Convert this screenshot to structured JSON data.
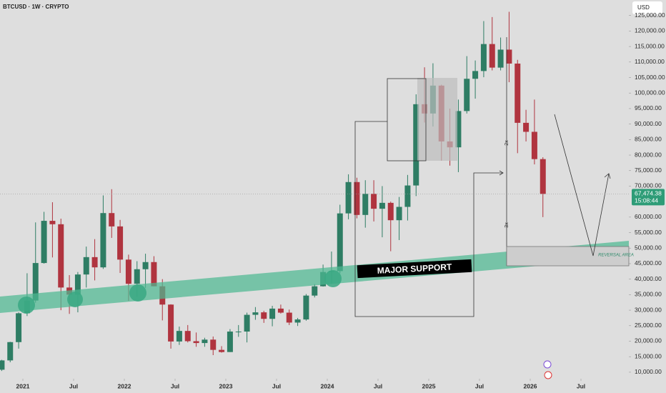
{
  "chart_data": {
    "type": "candlestick",
    "title": "BTCUSD · 1W · CRYPTO",
    "currency": "USD",
    "up_color": "#2e7d64",
    "down_color": "#b0343f",
    "x": [
      "2020-10",
      "2020-11",
      "2020-12",
      "2021-01",
      "2021-02",
      "2021-03",
      "2021-04",
      "2021-05",
      "2021-06",
      "2021-07",
      "2021-08",
      "2021-09",
      "2021-10",
      "2021-11",
      "2021-12",
      "2022-01",
      "2022-02",
      "2022-03",
      "2022-04",
      "2022-05",
      "2022-06",
      "2022-07",
      "2022-08",
      "2022-09",
      "2022-10",
      "2022-11",
      "2022-12",
      "2023-01",
      "2023-02",
      "2023-03",
      "2023-04",
      "2023-05",
      "2023-06",
      "2023-07",
      "2023-08",
      "2023-09",
      "2023-10",
      "2023-11",
      "2023-12",
      "2024-01",
      "2024-02",
      "2024-03",
      "2024-04",
      "2024-05",
      "2024-06",
      "2024-07",
      "2024-08",
      "2024-09",
      "2024-10",
      "2024-11",
      "2024-12",
      "2025-01",
      "2025-02",
      "2025-03",
      "2025-04",
      "2025-05",
      "2025-06",
      "2025-07",
      "2025-08",
      "2025-09",
      "2025-10",
      "2025-11",
      "2025-12",
      "2026-01",
      "2026-02"
    ],
    "open": [
      10800,
      13800,
      19700,
      29000,
      33100,
      45200,
      58800,
      57700,
      37300,
      35000,
      41500,
      47100,
      43800,
      61300,
      57000,
      46300,
      38500,
      43200,
      45500,
      37700,
      31800,
      19900,
      23300,
      20000,
      19400,
      20500,
      17200,
      16500,
      23100,
      23100,
      28500,
      29300,
      27200,
      30500,
      29200,
      26000,
      27000,
      34700,
      37700,
      42300,
      42600,
      61200,
      71300,
      60700,
      67500,
      62700,
      64600,
      59000,
      63300,
      70200,
      96400,
      93400,
      102400,
      84400,
      82500,
      94200,
      104600,
      107100,
      115800,
      108200,
      114000,
      109500,
      90400,
      87500,
      78700
    ],
    "high": [
      14000,
      19800,
      29300,
      41900,
      58300,
      61700,
      64800,
      59500,
      41300,
      42300,
      50500,
      52900,
      67000,
      69000,
      59100,
      47900,
      45800,
      48200,
      47400,
      40000,
      31900,
      24700,
      25200,
      22800,
      21100,
      21500,
      18400,
      23900,
      25200,
      29200,
      31000,
      29800,
      31400,
      31800,
      30200,
      27500,
      35200,
      38400,
      44700,
      48900,
      64000,
      73800,
      72700,
      71900,
      71900,
      70000,
      65000,
      66500,
      73600,
      99600,
      108300,
      109600,
      102700,
      95000,
      97900,
      111900,
      110500,
      123200,
      124500,
      117900,
      126200,
      110700,
      94600,
      97900,
      79300
    ],
    "low": [
      10400,
      13200,
      17600,
      28100,
      32400,
      45000,
      47000,
      30000,
      28800,
      29300,
      37300,
      39600,
      43300,
      53300,
      42000,
      33000,
      34300,
      37200,
      37700,
      26700,
      17600,
      18800,
      19600,
      18200,
      18200,
      15500,
      16300,
      16500,
      21400,
      19600,
      26900,
      25900,
      24800,
      28900,
      25200,
      24900,
      26600,
      34100,
      37600,
      38600,
      41900,
      59300,
      59600,
      56600,
      58600,
      53500,
      49000,
      52600,
      58900,
      66800,
      90500,
      89200,
      78200,
      76600,
      74500,
      93400,
      98200,
      105100,
      107300,
      107300,
      103500,
      80600,
      84400,
      77000,
      60000
    ],
    "close": [
      13800,
      19700,
      29000,
      33100,
      45200,
      58800,
      57700,
      37300,
      35000,
      41500,
      47100,
      43800,
      61300,
      57000,
      46300,
      38500,
      43200,
      45500,
      37700,
      31800,
      19900,
      23300,
      20000,
      19400,
      20500,
      17200,
      16500,
      23100,
      23100,
      28500,
      29300,
      27200,
      30500,
      29200,
      26000,
      27000,
      34700,
      37700,
      42300,
      42600,
      61200,
      71300,
      60700,
      67500,
      62700,
      64600,
      59000,
      63300,
      70200,
      96400,
      93400,
      102400,
      84400,
      82500,
      94200,
      104600,
      107100,
      115800,
      108200,
      114000,
      109500,
      90400,
      87500,
      78700,
      67474.38
    ],
    "ylim": [
      7900,
      130000
    ],
    "yticks": [
      {
        "value": 10000,
        "label": "10,000.00"
      },
      {
        "value": 15000,
        "label": "15,000.00"
      },
      {
        "value": 20000,
        "label": "20,000.00"
      },
      {
        "value": 25000,
        "label": "25,000.00"
      },
      {
        "value": 30000,
        "label": "30,000.00"
      },
      {
        "value": 35000,
        "label": "35,000.00"
      },
      {
        "value": 40000,
        "label": "40,000.00"
      },
      {
        "value": 45000,
        "label": "45,000.00"
      },
      {
        "value": 50000,
        "label": "50,000.00"
      },
      {
        "value": 55000,
        "label": "55,000.00"
      },
      {
        "value": 60000,
        "label": "60,000.00"
      },
      {
        "value": 70000,
        "label": "70,000.00"
      },
      {
        "value": 75000,
        "label": "75,000.00"
      },
      {
        "value": 80000,
        "label": "80,000.00"
      },
      {
        "value": 85000,
        "label": "85,000.00"
      },
      {
        "value": 90000,
        "label": "90,000.00"
      },
      {
        "value": 95000,
        "label": "95,000.00"
      },
      {
        "value": 100000,
        "label": "100,000.00"
      },
      {
        "value": 105000,
        "label": "105,000.00"
      },
      {
        "value": 110000,
        "label": "110,000.00"
      },
      {
        "value": 115000,
        "label": "115,000.00"
      },
      {
        "value": 120000,
        "label": "120,000.00"
      },
      {
        "value": 125000,
        "label": "125,000.00"
      }
    ],
    "xticks": [
      {
        "value": "2021-01",
        "label": "2021"
      },
      {
        "value": "2021-07",
        "label": "Jul"
      },
      {
        "value": "2022-01",
        "label": "2022"
      },
      {
        "value": "2022-07",
        "label": "Jul"
      },
      {
        "value": "2023-01",
        "label": "2023"
      },
      {
        "value": "2023-07",
        "label": "Jul"
      },
      {
        "value": "2024-01",
        "label": "2024"
      },
      {
        "value": "2024-07",
        "label": "Jul"
      },
      {
        "value": "2025-01",
        "label": "2025"
      },
      {
        "value": "2025-07",
        "label": "Jul"
      },
      {
        "value": "2026-01",
        "label": "2026"
      },
      {
        "value": "2026-07",
        "label": "Jul"
      }
    ],
    "last_price": {
      "value": 67474.38,
      "label": "67,474.38"
    },
    "countdown": "15:08:44",
    "annotations": [
      "MAJOR SUPPORT",
      "REVERSAL AREA",
      "2x",
      "3x"
    ]
  }
}
